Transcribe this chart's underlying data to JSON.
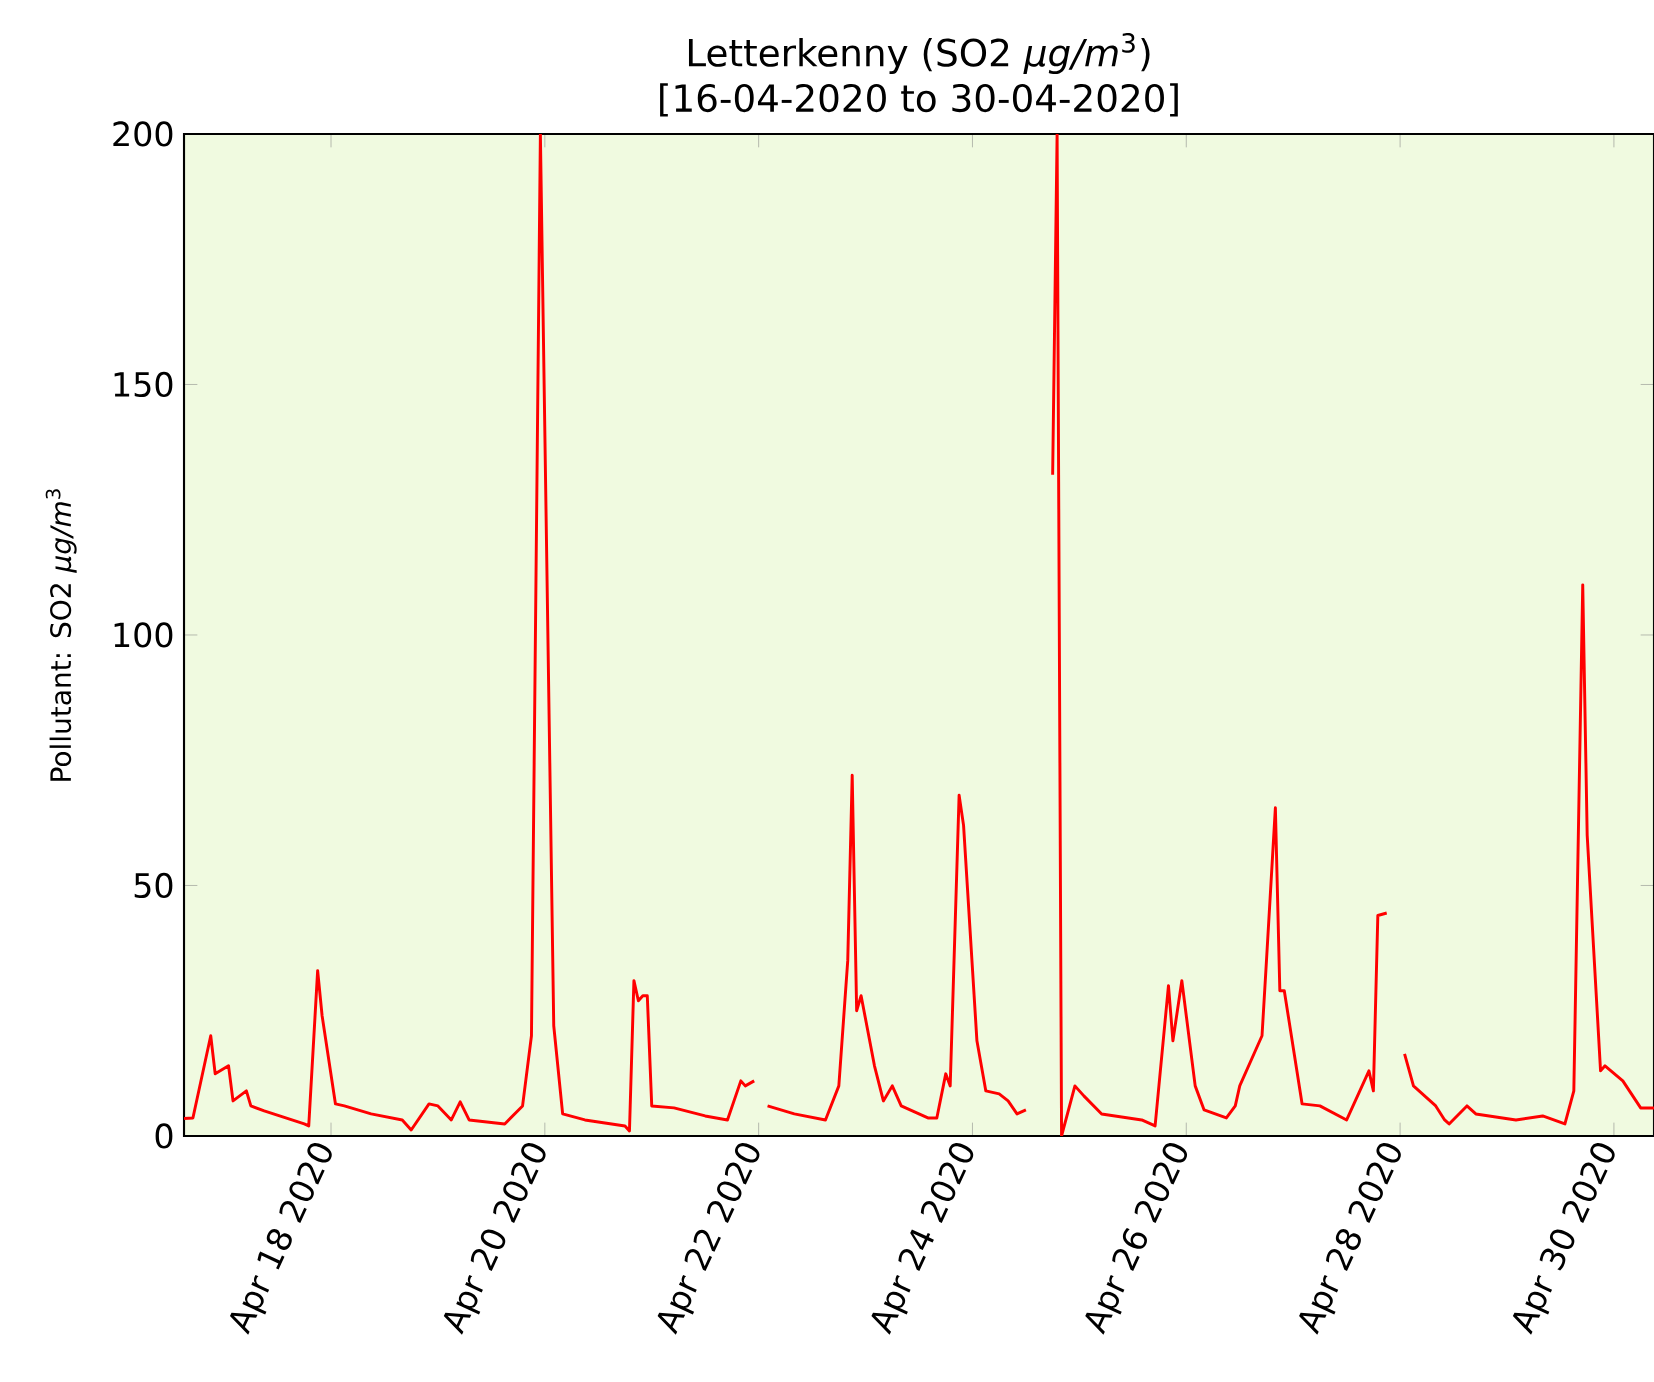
{
  "chart_data": {
    "type": "line",
    "title": "Letterkenny (SO2  *μg/m*$^{3}$)",
    "subtitle": "[16-04-2020 to 30-04-2020]",
    "ylabel": "Pollutant: SO2  *μg/m*$^{3}$",
    "xlim": [
      "2020-04-16T15:00",
      "2020-04-30T09:00"
    ],
    "ylim": [
      0,
      200
    ],
    "yticks": [
      0,
      50,
      100,
      150,
      200
    ],
    "xticks": [
      {
        "value": "2020-04-18",
        "label": "Apr 18 2020"
      },
      {
        "value": "2020-04-20",
        "label": "Apr 20 2020"
      },
      {
        "value": "2020-04-22",
        "label": "Apr 22 2020"
      },
      {
        "value": "2020-04-24",
        "label": "Apr 24 2020"
      },
      {
        "value": "2020-04-26",
        "label": "Apr 26 2020"
      },
      {
        "value": "2020-04-28",
        "label": "Apr 28 2020"
      },
      {
        "value": "2020-04-30",
        "label": "Apr 30 2020"
      }
    ],
    "grid": false,
    "x": [
      "2020-04-16T15:00",
      "2020-04-16T17:00",
      "2020-04-16T21:00",
      "2020-04-16T22:00",
      "2020-04-17T01:00",
      "2020-04-17T02:00",
      "2020-04-17T05:00",
      "2020-04-17T06:00",
      "2020-04-17T09:00",
      "2020-04-17T18:00",
      "2020-04-17T19:00",
      "2020-04-17T21:00",
      "2020-04-17T22:00",
      "2020-04-18T01:00",
      "2020-04-18T03:00",
      "2020-04-18T09:00",
      "2020-04-18T16:00",
      "2020-04-18T18:00",
      "2020-04-18T22:00",
      "2020-04-19T00:00",
      "2020-04-19T03:00",
      "2020-04-19T05:00",
      "2020-04-19T07:00",
      "2020-04-19T15:00",
      "2020-04-19T19:00",
      "2020-04-19T21:00",
      "2020-04-19T23:00",
      "2020-04-20T02:00",
      "2020-04-20T04:00",
      "2020-04-20T09:00",
      "2020-04-20T18:00",
      "2020-04-20T19:00",
      "2020-04-20T20:00",
      "2020-04-20T21:00",
      "2020-04-20T22:00",
      "2020-04-20T23:00",
      "2020-04-21T00:00",
      "2020-04-21T05:00",
      "2020-04-21T12:00",
      "2020-04-21T17:00",
      "2020-04-21T20:00",
      "2020-04-21T21:00",
      "2020-04-21T23:00",
      "2020-04-22T00:00",
      "2020-04-22T02:00",
      "2020-04-22T08:00",
      "2020-04-22T15:00",
      "2020-04-22T18:00",
      "2020-04-22T20:00",
      "2020-04-22T21:00",
      "2020-04-22T22:00",
      "2020-04-22T23:00",
      "2020-04-23T02:00",
      "2020-04-23T04:00",
      "2020-04-23T06:00",
      "2020-04-23T08:00",
      "2020-04-23T14:00",
      "2020-04-23T16:00",
      "2020-04-23T18:00",
      "2020-04-23T19:00",
      "2020-04-23T21:00",
      "2020-04-23T22:00",
      "2020-04-24T01:00",
      "2020-04-24T03:00",
      "2020-04-24T06:00",
      "2020-04-24T08:00",
      "2020-04-24T10:00",
      "2020-04-24T12:00",
      "2020-04-24T15:00",
      "2020-04-24T18:00",
      "2020-04-24T19:00",
      "2020-04-24T20:00",
      "2020-04-24T23:00",
      "2020-04-25T01:00",
      "2020-04-25T05:00",
      "2020-04-25T14:00",
      "2020-04-25T17:00",
      "2020-04-25T20:00",
      "2020-04-25T21:00",
      "2020-04-25T23:00",
      "2020-04-26T02:00",
      "2020-04-26T04:00",
      "2020-04-26T09:00",
      "2020-04-26T11:00",
      "2020-04-26T12:00",
      "2020-04-26T17:00",
      "2020-04-26T18:00",
      "2020-04-26T20:00",
      "2020-04-26T21:00",
      "2020-04-26T22:00",
      "2020-04-27T02:00",
      "2020-04-27T06:00",
      "2020-04-27T12:00",
      "2020-04-27T17:00",
      "2020-04-27T18:00",
      "2020-04-27T19:00",
      "2020-04-27T21:00",
      "2020-04-27T23:00",
      "2020-04-28T01:00",
      "2020-04-28T03:00",
      "2020-04-28T08:00",
      "2020-04-28T10:00",
      "2020-04-28T11:00",
      "2020-04-28T15:00",
      "2020-04-28T17:00",
      "2020-04-29T02:00",
      "2020-04-29T08:00",
      "2020-04-29T13:00",
      "2020-04-29T15:00",
      "2020-04-29T17:00",
      "2020-04-29T18:00",
      "2020-04-29T21:00",
      "2020-04-29T22:00",
      "2020-04-30T02:00",
      "2020-04-30T06:00",
      "2020-04-30T09:00"
    ],
    "series": [
      {
        "color": "#ff0000",
        "line_style": "solid",
        "marker": "none",
        "values": [
          3.5,
          3.6,
          20,
          12.4,
          14,
          7,
          9,
          6,
          5,
          2.4,
          2,
          33,
          24,
          6.4,
          6,
          4.4,
          3.2,
          1.2,
          6.4,
          6,
          3.2,
          6.8,
          3.2,
          2.4,
          6,
          20,
          200,
          22,
          4.4,
          3.2,
          2,
          1,
          31,
          27,
          28,
          28,
          6,
          5.6,
          4,
          3.2,
          11,
          10,
          11,
          null,
          6,
          4.4,
          3.2,
          10,
          35,
          72,
          25,
          28,
          14,
          7,
          10,
          6,
          3.6,
          3.6,
          12.4,
          10,
          68,
          62,
          19,
          9,
          8.4,
          7,
          4.4,
          5.2,
          null,
          132,
          200,
          0,
          10,
          8,
          4.4,
          3.2,
          2,
          30,
          19,
          31,
          10,
          5.2,
          3.6,
          6,
          10,
          20,
          35,
          65.5,
          29,
          29,
          6.4,
          6,
          3.2,
          13,
          9,
          44,
          44.5,
          null,
          16.4,
          10,
          6,
          3.2,
          2.4,
          6,
          4.4,
          3.2,
          4,
          2.4,
          9,
          110,
          60,
          13,
          14,
          11,
          5.6,
          5.6
        ]
      }
    ]
  }
}
